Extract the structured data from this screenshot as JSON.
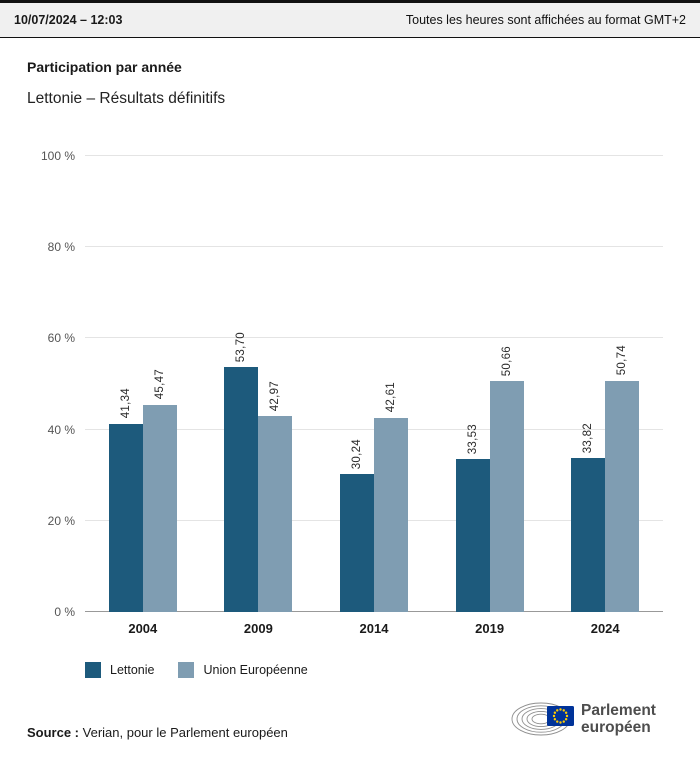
{
  "header": {
    "datetime": "10/07/2024 – 12:03",
    "timezone_note": "Toutes les heures sont affichées au format GMT+2"
  },
  "title": "Participation par année",
  "subtitle": "Lettonie – Résultats définitifs",
  "chart_data": {
    "type": "bar",
    "title": "Participation par année",
    "subtitle": "Lettonie – Résultats définitifs",
    "categories": [
      "2004",
      "2009",
      "2014",
      "2019",
      "2024"
    ],
    "series": [
      {
        "name": "Lettonie",
        "color": "#1d5a7c",
        "values": [
          41.34,
          53.7,
          30.24,
          33.53,
          33.82
        ],
        "value_labels": [
          "41,34",
          "53,70",
          "30,24",
          "33,53",
          "33,82"
        ]
      },
      {
        "name": "Union Européenne",
        "color": "#7f9db2",
        "values": [
          45.47,
          42.97,
          42.61,
          50.66,
          50.74
        ],
        "value_labels": [
          "45,47",
          "42,97",
          "42,61",
          "50,66",
          "50,74"
        ]
      }
    ],
    "ylim": [
      0,
      100
    ],
    "y_ticks": [
      {
        "value": 0,
        "label": "0 %"
      },
      {
        "value": 20,
        "label": "20 %"
      },
      {
        "value": 40,
        "label": "40 %"
      },
      {
        "value": 60,
        "label": "60 %"
      },
      {
        "value": 80,
        "label": "80 %"
      },
      {
        "value": 100,
        "label": "100 %"
      }
    ],
    "grid": true,
    "legend_position": "bottom-left"
  },
  "footer": {
    "source_label": "Source :",
    "source_text": "Verian, pour le Parlement européen"
  },
  "logo": {
    "line1": "Parlement",
    "line2": "européen"
  },
  "colors": {
    "lettonie": "#1d5a7c",
    "union_europeenne": "#7f9db2",
    "header_bg": "#f0f0f0",
    "flag_blue": "#003399",
    "flag_star": "#ffcc00"
  }
}
